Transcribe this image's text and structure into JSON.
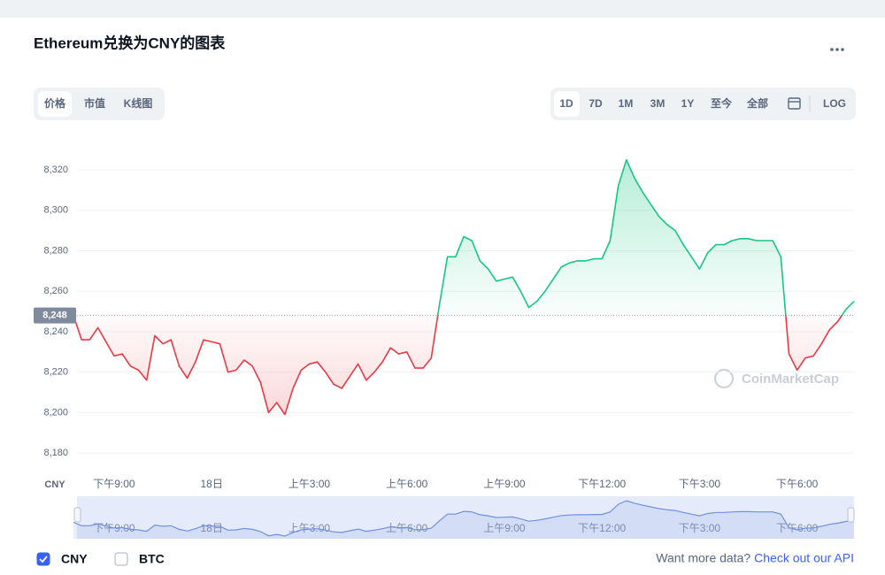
{
  "header": {
    "title": "Ethereum兑换为CNY的图表"
  },
  "tabs": [
    "价格",
    "市值",
    "K线图"
  ],
  "active_tab": 0,
  "ranges": [
    "1D",
    "7D",
    "1M",
    "3M",
    "1Y",
    "至今",
    "全部"
  ],
  "active_range": 0,
  "log_button": "LOG",
  "chart_data": {
    "type": "line",
    "y_unit": "CNY",
    "watermark": "CoinMarketCap",
    "categories": [
      null,
      null,
      null,
      null,
      null,
      "下午9:00",
      null,
      null,
      null,
      null,
      null,
      null,
      null,
      null,
      null,
      null,
      null,
      "18日",
      null,
      null,
      null,
      null,
      null,
      null,
      null,
      null,
      null,
      null,
      null,
      "上午3:00",
      null,
      null,
      null,
      null,
      null,
      null,
      null,
      null,
      null,
      null,
      null,
      "上午6:00",
      null,
      null,
      null,
      null,
      null,
      null,
      null,
      null,
      null,
      null,
      null,
      "上午9:00",
      null,
      null,
      null,
      null,
      null,
      null,
      null,
      null,
      null,
      null,
      null,
      "下午12:00",
      null,
      null,
      null,
      null,
      null,
      null,
      null,
      null,
      null,
      null,
      null,
      "下午3:00",
      null,
      null,
      null,
      null,
      null,
      null,
      null,
      null,
      null,
      null,
      null,
      "下午6:00",
      null,
      null,
      null,
      null,
      null,
      null,
      null
    ],
    "series": [
      {
        "name": "CNY",
        "values": [
          8248,
          8236,
          8236,
          8242,
          8235,
          8228,
          8229,
          8223,
          8221,
          8216,
          8238,
          8234,
          8236,
          8223,
          8217,
          8225,
          8236,
          8235,
          8234,
          8220,
          8221,
          8226,
          8223,
          8215,
          8200,
          8205,
          8199,
          8212,
          8221,
          8224,
          8225,
          8220,
          8214,
          8212,
          8218,
          8224,
          8216,
          8220,
          8225,
          8232,
          8229,
          8230,
          8222,
          8222,
          8227,
          8253,
          8277,
          8277,
          8287,
          8285,
          8275,
          8271,
          8265,
          8266,
          8267,
          8260,
          8252,
          8255,
          8260,
          8266,
          8272,
          8274,
          8275,
          8275,
          8276,
          8276,
          8285,
          8312,
          8325,
          8316,
          8309,
          8303,
          8297,
          8293,
          8290,
          8283,
          8277,
          8271,
          8279,
          8283,
          8283,
          8285,
          8286,
          8286,
          8285,
          8285,
          8285,
          8277,
          8229,
          8221,
          8227,
          8228,
          8234,
          8241,
          8245,
          8251,
          8255
        ]
      }
    ],
    "colors": {
      "up": "#16c784",
      "down": "#ea3943",
      "navigator": "#6f8fe0"
    },
    "reference": {
      "value": 8248,
      "label": "8,248"
    },
    "ylim": [
      8170,
      8334
    ],
    "yticks": [
      {
        "value": 8180,
        "label": "8,180"
      },
      {
        "value": 8200,
        "label": "8,200"
      },
      {
        "value": 8220,
        "label": "8,220"
      },
      {
        "value": 8240,
        "label": "8,240"
      },
      {
        "value": 8260,
        "label": "8,260"
      },
      {
        "value": 8280,
        "label": "8,280"
      },
      {
        "value": 8300,
        "label": "8,300"
      },
      {
        "value": 8320,
        "label": "8,320"
      }
    ],
    "grid": true
  },
  "legend": [
    {
      "label": "CNY",
      "checked": true
    },
    {
      "label": "BTC",
      "checked": false
    }
  ],
  "footer": {
    "prompt": "Want more data?",
    "link": "Check out our API"
  }
}
